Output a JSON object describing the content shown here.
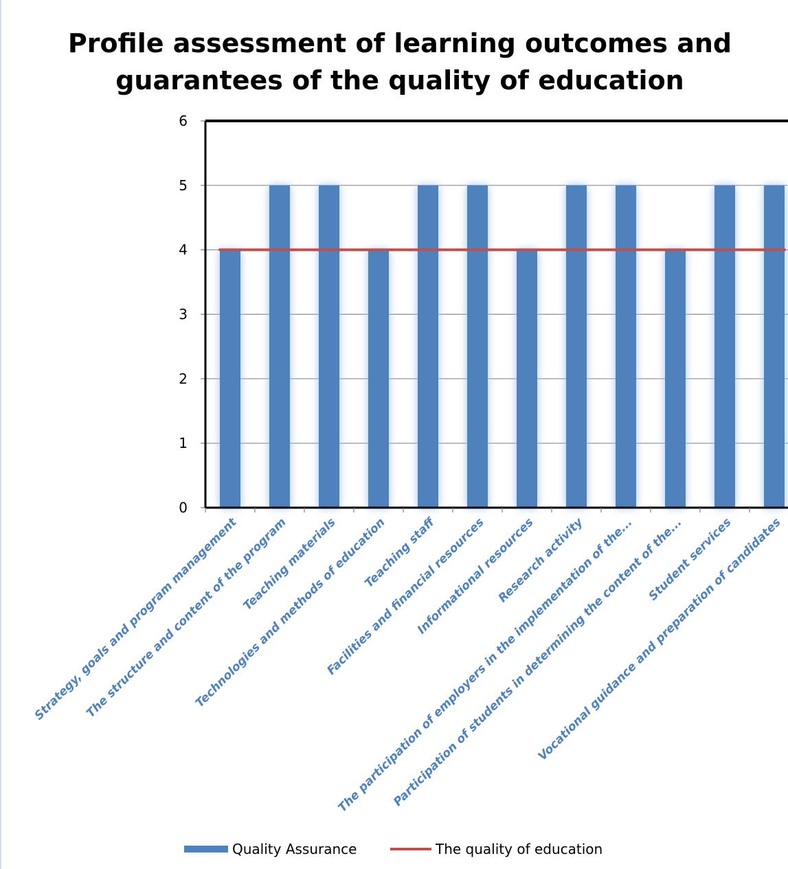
{
  "chart_data": {
    "type": "bar",
    "title": "Profile assessment of learning outcomes and guarantees of the quality of education",
    "xlabel": "",
    "ylabel": "",
    "ylim": [
      0,
      6
    ],
    "yticks": [
      "0",
      "1",
      "2",
      "3",
      "4",
      "5",
      "6"
    ],
    "grid": true,
    "legend_position": "bottom",
    "categories": [
      "Strategy, goals and program management",
      "The structure and content of the program",
      "Teaching materials",
      "Technologies and methods of education",
      "Teaching staff",
      "Facilities and financial resources",
      "Informational resources",
      "Research activity",
      "The participation of employers in the implementation of the...",
      "Participation of students in determining the content of the...",
      "Student services",
      "Vocational guidance and preparation of candidates"
    ],
    "series": [
      {
        "name": "Quality Assurance",
        "type": "bar",
        "color": "#4f81bd",
        "values": [
          4,
          5,
          5,
          4,
          5,
          5,
          4,
          5,
          5,
          4,
          5,
          5
        ]
      },
      {
        "name": "The quality of education",
        "type": "line",
        "color": "#c0504d",
        "values": [
          4,
          4,
          4,
          4,
          4,
          4,
          4,
          4,
          4,
          4,
          4,
          4
        ]
      }
    ]
  }
}
